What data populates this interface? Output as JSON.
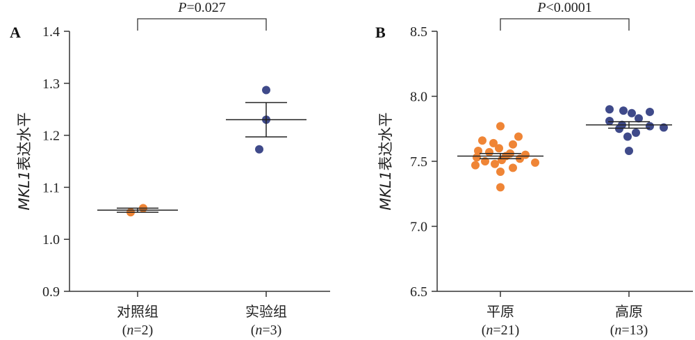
{
  "chart_data": [
    {
      "type": "scatter",
      "panel": "A",
      "ylabel_prefix": "MKL1",
      "ylabel_suffix": "表达水平",
      "ylim": [
        0.9,
        1.4
      ],
      "yticks": [
        "0.9",
        "1.0",
        "1.1",
        "1.2",
        "1.3",
        "1.4"
      ],
      "groups": [
        {
          "label": "对照组",
          "n": "=2",
          "color": "#ef8536",
          "values": [
            1.052,
            1.06
          ],
          "mean": 1.056,
          "sem": 0.004
        },
        {
          "label": "实验组",
          "n": "=3",
          "color": "#3f4a8a",
          "values": [
            1.287,
            1.23,
            1.173
          ],
          "mean": 1.23,
          "sem": 0.033
        }
      ],
      "significance": {
        "text": "=0.027",
        "between": [
          0,
          1
        ]
      }
    },
    {
      "type": "scatter",
      "panel": "B",
      "ylabel_prefix": "MKL1",
      "ylabel_suffix": "表达水平",
      "ylim": [
        6.5,
        8.5
      ],
      "yticks": [
        "6.5",
        "7.0",
        "7.5",
        "8.0",
        "8.5"
      ],
      "groups": [
        {
          "label": "平原",
          "n": "=21",
          "color": "#ef8536",
          "values": [
            7.77,
            7.69,
            7.66,
            7.64,
            7.63,
            7.6,
            7.58,
            7.57,
            7.56,
            7.55,
            7.54,
            7.53,
            7.52,
            7.51,
            7.5,
            7.49,
            7.48,
            7.47,
            7.45,
            7.42,
            7.3
          ],
          "mean": 7.54,
          "sem": 0.02
        },
        {
          "label": "高原",
          "n": "=13",
          "color": "#3f4a8a",
          "values": [
            7.9,
            7.89,
            7.88,
            7.87,
            7.83,
            7.81,
            7.78,
            7.77,
            7.76,
            7.75,
            7.72,
            7.69,
            7.58
          ],
          "mean": 7.78,
          "sem": 0.025
        }
      ],
      "significance": {
        "text": "<0.0001",
        "between": [
          0,
          1
        ]
      }
    }
  ]
}
